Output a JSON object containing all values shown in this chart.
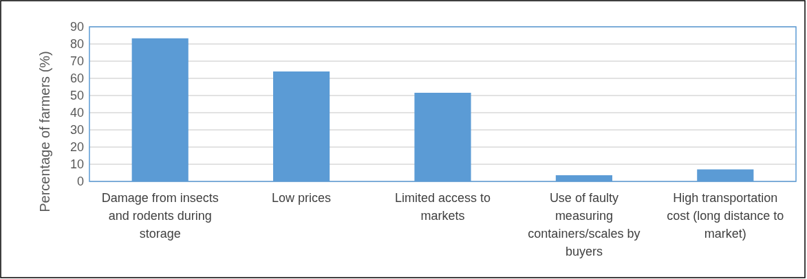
{
  "chart_data": {
    "type": "bar",
    "ylabel": "Percentage of farmers (%)",
    "categories": [
      "Damage from insects and rodents during storage",
      "Low prices",
      "Limited access to markets",
      "Use of faulty measuring containers/scales by buyers",
      "High transportation cost (long distance to market)"
    ],
    "values": [
      83.3,
      64,
      51.6,
      3.6,
      7
    ],
    "color": "#5b9bd5",
    "ylim": [
      0,
      90
    ],
    "yticks": [
      0,
      10,
      20,
      30,
      40,
      50,
      60,
      70,
      80,
      90
    ],
    "grid": "y"
  }
}
